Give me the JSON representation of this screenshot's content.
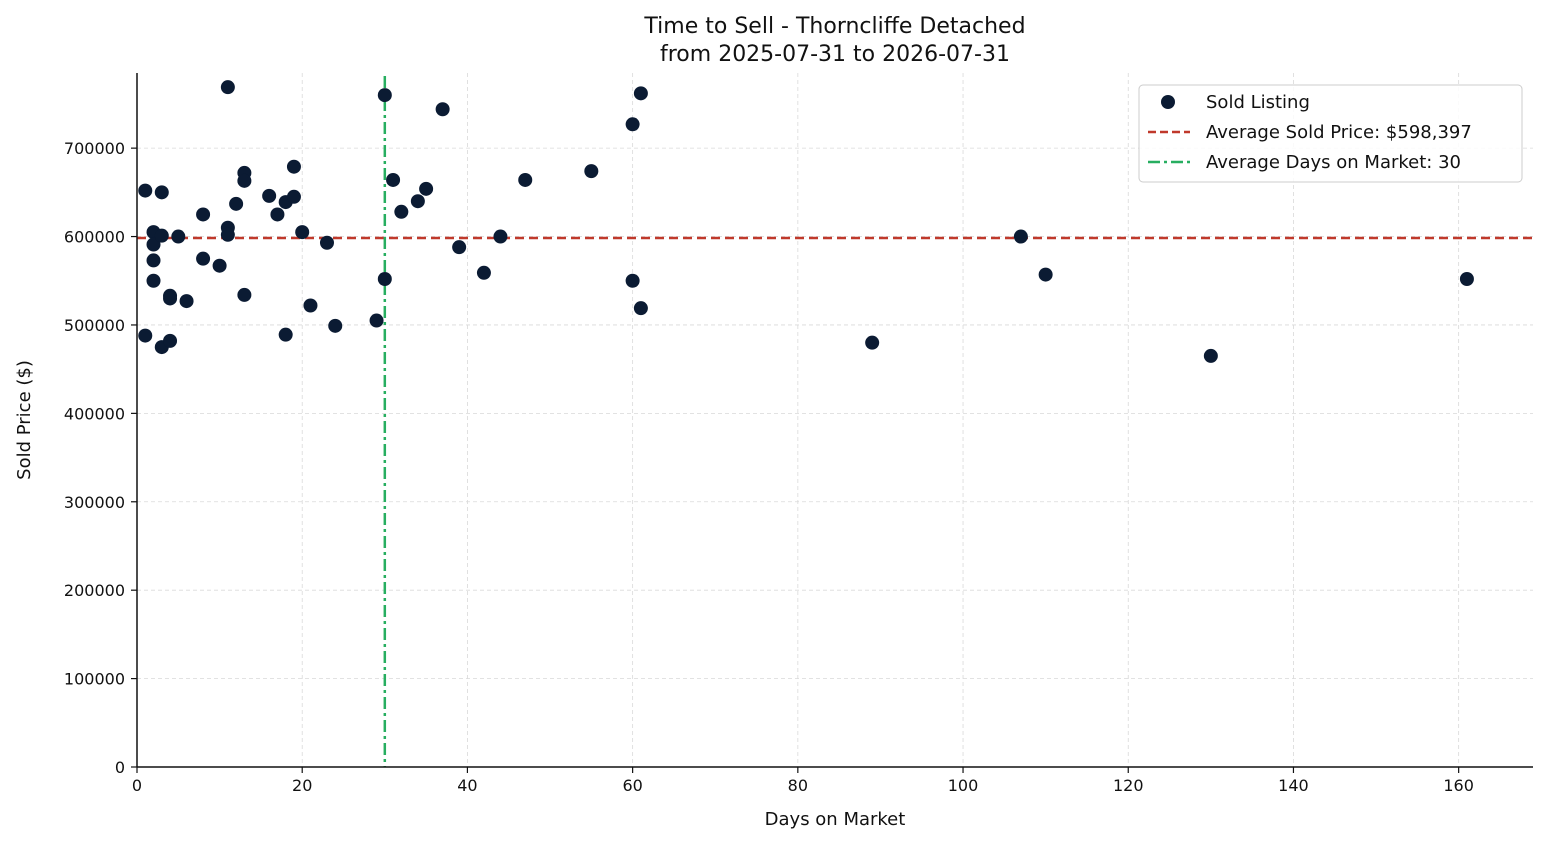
{
  "chart_data": {
    "type": "scatter",
    "title": "Time to Sell - Thorncliffe Detached",
    "subtitle": "from 2025-07-31 to 2026-07-31",
    "xlabel": "Days on Market",
    "ylabel": "Sold Price ($)",
    "xlim": [
      0,
      169
    ],
    "ylim": [
      0,
      785000
    ],
    "x_ticks": [
      0,
      20,
      40,
      60,
      80,
      100,
      120,
      140,
      160
    ],
    "y_ticks": [
      0,
      100000,
      200000,
      300000,
      400000,
      500000,
      600000,
      700000
    ],
    "grid": true,
    "legend_position": "top-right",
    "series": [
      {
        "name": "Sold Listing",
        "color": "#0b1b33",
        "points": [
          [
            1,
            652000
          ],
          [
            1,
            488000
          ],
          [
            2,
            605000
          ],
          [
            2,
            591000
          ],
          [
            2,
            573000
          ],
          [
            2,
            550000
          ],
          [
            3,
            650000
          ],
          [
            3,
            601000
          ],
          [
            3,
            475000
          ],
          [
            4,
            533000
          ],
          [
            4,
            530000
          ],
          [
            4,
            482000
          ],
          [
            5,
            600000
          ],
          [
            6,
            527000
          ],
          [
            8,
            625000
          ],
          [
            8,
            575000
          ],
          [
            10,
            567000
          ],
          [
            11,
            769000
          ],
          [
            11,
            610000
          ],
          [
            11,
            602000
          ],
          [
            12,
            637000
          ],
          [
            13,
            672000
          ],
          [
            13,
            663000
          ],
          [
            13,
            534000
          ],
          [
            16,
            646000
          ],
          [
            17,
            625000
          ],
          [
            18,
            639000
          ],
          [
            18,
            489000
          ],
          [
            19,
            679000
          ],
          [
            19,
            645000
          ],
          [
            20,
            605000
          ],
          [
            21,
            522000
          ],
          [
            23,
            593000
          ],
          [
            24,
            499000
          ],
          [
            29,
            505000
          ],
          [
            30,
            760000
          ],
          [
            30,
            552000
          ],
          [
            31,
            664000
          ],
          [
            32,
            628000
          ],
          [
            34,
            640000
          ],
          [
            35,
            654000
          ],
          [
            37,
            744000
          ],
          [
            39,
            588000
          ],
          [
            42,
            559000
          ],
          [
            44,
            600000
          ],
          [
            47,
            664000
          ],
          [
            55,
            674000
          ],
          [
            60,
            727000
          ],
          [
            60,
            550000
          ],
          [
            61,
            762000
          ],
          [
            61,
            519000
          ],
          [
            89,
            480000
          ],
          [
            107,
            600000
          ],
          [
            110,
            557000
          ],
          [
            130,
            465000
          ],
          [
            161,
            552000
          ]
        ]
      }
    ],
    "average_sold_price": 598397,
    "average_days_on_market": 30,
    "avg_price_color": "#c0392b",
    "avg_days_color": "#27ae60",
    "legend": [
      "Sold Listing",
      "Average Sold Price: $598,397",
      "Average Days on Market: 30"
    ]
  }
}
